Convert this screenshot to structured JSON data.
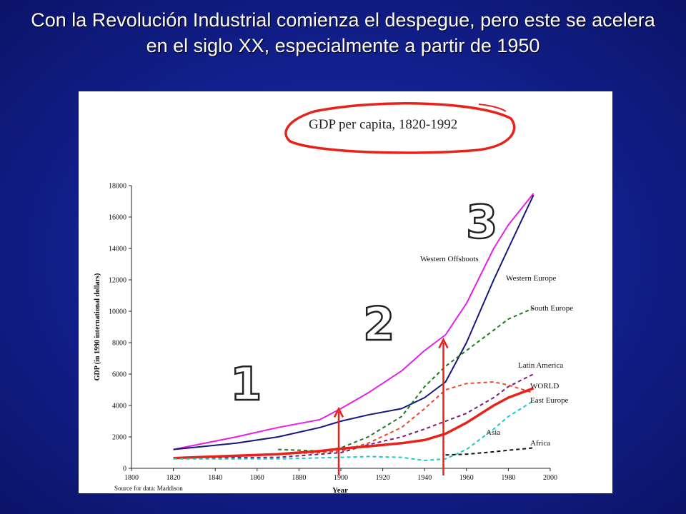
{
  "slide": {
    "title": "Con la Revolución Industrial comienza el despegue, pero este se acelera en el siglo XX, especialmente a partir de 1950"
  },
  "chart_data": {
    "type": "line",
    "title": "GDP per capita, 1820-1992",
    "xlabel": "Year",
    "ylabel": "GDP (in 1990 international dollars)",
    "source_note": "Source for data:  Maddison",
    "xlim": [
      1800,
      2000
    ],
    "ylim": [
      0,
      18000
    ],
    "x_ticks": [
      1800,
      1820,
      1840,
      1860,
      1880,
      1900,
      1920,
      1940,
      1960,
      1980,
      2000
    ],
    "y_ticks": [
      0,
      2000,
      4000,
      6000,
      8000,
      10000,
      12000,
      14000,
      16000,
      18000
    ],
    "grid": false,
    "series": [
      {
        "name": "Western Offshoots",
        "color": "#e61fe6",
        "style": "solid",
        "width": 2,
        "x": [
          1820,
          1850,
          1870,
          1890,
          1900,
          1913,
          1929,
          1940,
          1950,
          1960,
          1973,
          1980,
          1992
        ],
        "y": [
          1200,
          2000,
          2600,
          3100,
          3800,
          4800,
          6200,
          7500,
          8500,
          10500,
          14000,
          15500,
          17500
        ]
      },
      {
        "name": "Western Europe",
        "color": "#16167a",
        "style": "solid",
        "width": 2,
        "x": [
          1820,
          1850,
          1870,
          1890,
          1900,
          1913,
          1929,
          1940,
          1950,
          1960,
          1973,
          1980,
          1992
        ],
        "y": [
          1200,
          1600,
          2000,
          2600,
          3000,
          3400,
          3800,
          4500,
          5500,
          8000,
          12000,
          14000,
          17400
        ]
      },
      {
        "name": "South Europe",
        "color": "#1a7a1a",
        "style": "dashed",
        "width": 2,
        "x": [
          1870,
          1890,
          1900,
          1913,
          1929,
          1940,
          1950,
          1960,
          1973,
          1980,
          1992
        ],
        "y": [
          1200,
          1100,
          1300,
          2000,
          3300,
          5200,
          6500,
          7500,
          8800,
          9500,
          10200
        ]
      },
      {
        "name": "Latin America",
        "color": "#7a1a7a",
        "style": "dashed",
        "width": 2,
        "x": [
          1820,
          1870,
          1900,
          1913,
          1929,
          1940,
          1950,
          1960,
          1973,
          1980,
          1992
        ],
        "y": [
          650,
          700,
          1000,
          1500,
          2000,
          2500,
          3000,
          3500,
          4500,
          5200,
          6000
        ]
      },
      {
        "name": "East Europe",
        "color": "#e84a2a",
        "style": "dashed",
        "width": 2,
        "x": [
          1870,
          1890,
          1900,
          1913,
          1929,
          1940,
          1950,
          1960,
          1973,
          1980,
          1992
        ],
        "y": [
          900,
          1000,
          1100,
          1600,
          2600,
          3800,
          5000,
          5400,
          5500,
          5300,
          4800
        ]
      },
      {
        "name": "WORLD",
        "color": "#e8221a",
        "style": "solid",
        "width": 3.5,
        "x": [
          1820,
          1850,
          1870,
          1890,
          1900,
          1913,
          1929,
          1940,
          1950,
          1960,
          1973,
          1980,
          1992
        ],
        "y": [
          650,
          800,
          900,
          1100,
          1250,
          1400,
          1600,
          1800,
          2200,
          2900,
          4000,
          4500,
          5100
        ]
      },
      {
        "name": "Asia",
        "color": "#1acaca",
        "style": "dashed",
        "width": 2,
        "x": [
          1820,
          1870,
          1900,
          1913,
          1929,
          1940,
          1950,
          1960,
          1973,
          1980,
          1992
        ],
        "y": [
          600,
          600,
          700,
          750,
          700,
          500,
          600,
          1200,
          2500,
          3300,
          4300
        ]
      },
      {
        "name": "Africa",
        "color": "#111111",
        "style": "dashed",
        "width": 2,
        "x": [
          1950,
          1960,
          1973,
          1980,
          1992
        ],
        "y": [
          850,
          900,
          1050,
          1150,
          1300
        ]
      }
    ],
    "annotations": {
      "phases": [
        "1",
        "2",
        "3"
      ],
      "arrow_years": [
        1900,
        1950
      ],
      "highlight_color": "#e8221a"
    }
  }
}
